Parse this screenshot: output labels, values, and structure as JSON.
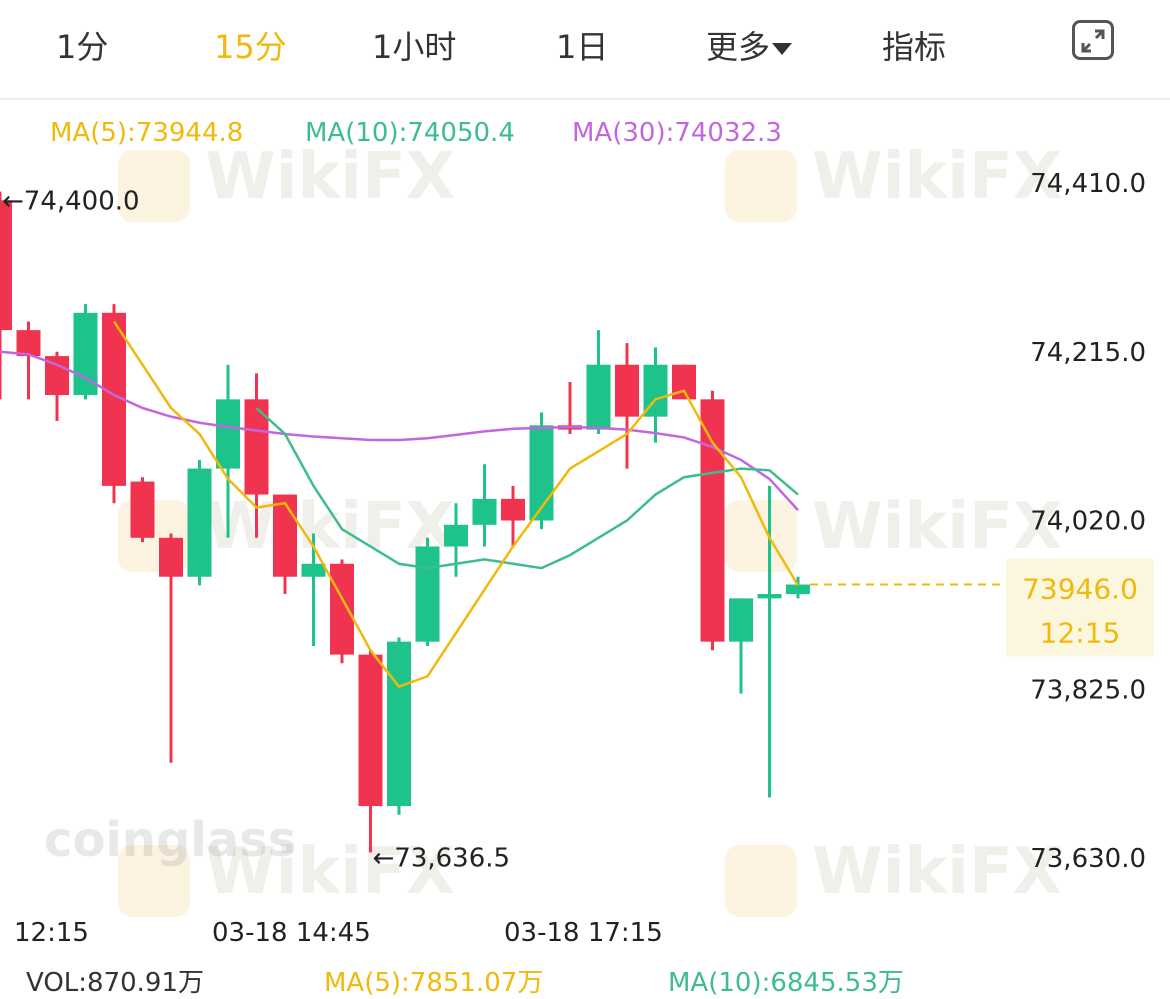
{
  "tabs": [
    {
      "label": "1分",
      "active": false
    },
    {
      "label": "15分",
      "active": true
    },
    {
      "label": "1小时",
      "active": false
    },
    {
      "label": "1日",
      "active": false
    },
    {
      "label": "更多",
      "active": false
    },
    {
      "label": "指标",
      "active": false
    }
  ],
  "fullscreen_icon": "expand-icon",
  "ma_legend": {
    "ma5": {
      "text": "MA(5):73944.8",
      "color": "#f0b90b"
    },
    "ma10": {
      "text": "MA(10):74050.4",
      "color": "#3dbd8e"
    },
    "ma30": {
      "text": "MA(30):74032.3",
      "color": "#c266e0"
    }
  },
  "price_axis": [
    "74,410.0",
    "74,215.0",
    "74,020.0",
    "73,825.0",
    "73,630.0"
  ],
  "current_price": {
    "value": "73946.0",
    "time": "12:15"
  },
  "high_marker": "←74,400.0",
  "low_marker": "←73,636.5",
  "time_axis": [
    "12:15",
    "03-18 14:45",
    "03-18 17:15"
  ],
  "volume_row": {
    "vol": "VOL:870.91万",
    "ma5": "MA(5):7851.07万",
    "ma10": "MA(10):6845.53万"
  },
  "watermarks": {
    "brand": "WikiFX",
    "source": "coinglass"
  },
  "colors": {
    "up": "#1ec28b",
    "down": "#f0344f",
    "ma5": "#f0b90b",
    "ma10": "#3dbd8e",
    "ma30": "#c266e0"
  },
  "chart_data": {
    "type": "candlestick",
    "interval": "15分",
    "ylim": [
      73630,
      74410
    ],
    "candles": [
      {
        "o": 74390,
        "c": 74240,
        "h": 74400,
        "l": 74160
      },
      {
        "o": 74240,
        "c": 74210,
        "h": 74250,
        "l": 74160
      },
      {
        "o": 74210,
        "c": 74165,
        "h": 74215,
        "l": 74135
      },
      {
        "o": 74165,
        "c": 74260,
        "h": 74270,
        "l": 74160
      },
      {
        "o": 74260,
        "c": 74060,
        "h": 74270,
        "l": 74040
      },
      {
        "o": 74065,
        "c": 74000,
        "h": 74070,
        "l": 73995
      },
      {
        "o": 74000,
        "c": 73955,
        "h": 74005,
        "l": 73740
      },
      {
        "o": 73955,
        "c": 74080,
        "h": 74090,
        "l": 73945
      },
      {
        "o": 74080,
        "c": 74160,
        "h": 74200,
        "l": 74000
      },
      {
        "o": 74160,
        "c": 74050,
        "h": 74190,
        "l": 74000
      },
      {
        "o": 74050,
        "c": 73955,
        "h": 74050,
        "l": 73935
      },
      {
        "o": 73955,
        "c": 73970,
        "h": 74005,
        "l": 73875
      },
      {
        "o": 73970,
        "c": 73865,
        "h": 73975,
        "l": 73855
      },
      {
        "o": 73865,
        "c": 73690,
        "h": 73870,
        "l": 73636.5
      },
      {
        "o": 73690,
        "c": 73880,
        "h": 73885,
        "l": 73680
      },
      {
        "o": 73880,
        "c": 73990,
        "h": 74000,
        "l": 73875
      },
      {
        "o": 73990,
        "c": 74015,
        "h": 74040,
        "l": 73955
      },
      {
        "o": 74015,
        "c": 74045,
        "h": 74085,
        "l": 73990
      },
      {
        "o": 74045,
        "c": 74020,
        "h": 74060,
        "l": 73990
      },
      {
        "o": 74020,
        "c": 74130,
        "h": 74145,
        "l": 74010
      },
      {
        "o": 74130,
        "c": 74125,
        "h": 74180,
        "l": 74120
      },
      {
        "o": 74125,
        "c": 74200,
        "h": 74240,
        "l": 74120
      },
      {
        "o": 74200,
        "c": 74140,
        "h": 74225,
        "l": 74080
      },
      {
        "o": 74140,
        "c": 74200,
        "h": 74220,
        "l": 74110
      },
      {
        "o": 74200,
        "c": 74160,
        "h": 74200,
        "l": 74160
      },
      {
        "o": 74160,
        "c": 73880,
        "h": 74170,
        "l": 73870
      },
      {
        "o": 73880,
        "c": 73930,
        "h": 73930,
        "l": 73820
      },
      {
        "o": 73930,
        "c": 73935,
        "h": 74060,
        "l": 73700
      },
      {
        "o": 73935,
        "c": 73946,
        "h": 73955,
        "l": 73930
      }
    ],
    "ma5": [
      null,
      null,
      null,
      null,
      74250,
      74200,
      74150,
      74120,
      74068,
      74035,
      74040,
      73990,
      73930,
      73870,
      73828,
      73840,
      73890,
      73940,
      73990,
      74035,
      74080,
      74100,
      74120,
      74160,
      74170,
      74110,
      74070,
      74000,
      73945
    ],
    "ma10": [
      null,
      null,
      null,
      null,
      null,
      null,
      null,
      null,
      null,
      74150,
      74120,
      74060,
      74010,
      73990,
      73970,
      73965,
      73970,
      73975,
      73970,
      73965,
      73980,
      74000,
      74020,
      74050,
      74070,
      74075,
      74080,
      74078,
      74050
    ],
    "ma30": [
      74215,
      74212,
      74200,
      74185,
      74165,
      74150,
      74140,
      74133,
      74128,
      74124,
      74120,
      74117,
      74115,
      74113,
      74113,
      74115,
      74119,
      74123,
      74126,
      74127,
      74128,
      74127,
      74125,
      74121,
      74116,
      74105,
      74090,
      74068,
      74032
    ]
  }
}
